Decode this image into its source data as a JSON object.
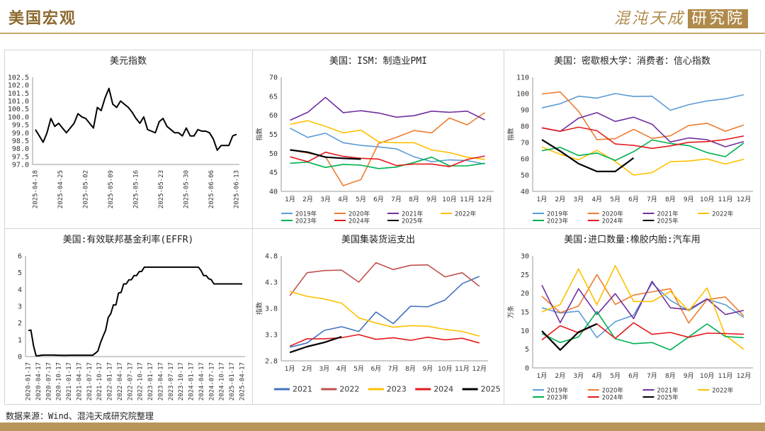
{
  "header": {
    "title": "美国宏观",
    "logo_text": "混沌天成",
    "logo_box": "研究院"
  },
  "footer": {
    "source": "数据来源：Wind、混沌天成研究院整理"
  },
  "months": [
    "1月",
    "2月",
    "3月",
    "4月",
    "5月",
    "6月",
    "7月",
    "8月",
    "9月",
    "10月",
    "11月",
    "12月"
  ],
  "chart_data": [
    {
      "id": "dxy",
      "type": "line",
      "title": "美元指数",
      "ylim": [
        97.0,
        102.5
      ],
      "yticks": [
        "97.0",
        "97.5",
        "98.0",
        "98.5",
        "99.0",
        "99.5",
        "100.0",
        "100.5",
        "101.0",
        "101.5",
        "102.0",
        "102.5"
      ],
      "x_tick_labels": [
        "2025-04-18",
        "2025-04-25",
        "2025-05-02",
        "2025-05-09",
        "2025-05-16",
        "2025-05-23",
        "2025-05-30",
        "2025-06-06",
        "2025-06-13"
      ],
      "series": [
        {
          "color": "#000000",
          "values": [
            99.2,
            98.8,
            98.4,
            99.0,
            99.9,
            99.4,
            99.6,
            99.3,
            99.0,
            99.3,
            99.6,
            100.2,
            100.0,
            99.9,
            99.6,
            99.3,
            100.6,
            100.4,
            101.2,
            101.8,
            100.8,
            100.6,
            101.0,
            100.8,
            100.6,
            100.3,
            99.9,
            99.6,
            100.0,
            99.2,
            99.1,
            99.0,
            99.7,
            99.9,
            99.4,
            99.2,
            99.0,
            99.0,
            98.8,
            99.3,
            98.8,
            98.8,
            99.2,
            99.1,
            99.1,
            99.0,
            98.6,
            97.9,
            98.2,
            98.2,
            98.2,
            98.8,
            98.9
          ]
        }
      ]
    },
    {
      "id": "pmi",
      "type": "line",
      "title": "美国：ISM：制造业PMI",
      "ylabel": "指数",
      "ylim": [
        40,
        70
      ],
      "yticks": [
        "40",
        "45",
        "50",
        "55",
        "60",
        "65",
        "70"
      ],
      "series": [
        {
          "name": "2019年",
          "color": "#5b9bd5",
          "values": [
            56.6,
            54.2,
            55.3,
            52.8,
            52.1,
            51.7,
            51.2,
            49.1,
            47.8,
            48.3,
            48.1,
            47.2
          ]
        },
        {
          "name": "2020年",
          "color": "#ed7d31",
          "values": [
            50.9,
            50.1,
            49.1,
            41.5,
            43.1,
            52.6,
            54.2,
            56.0,
            55.4,
            59.3,
            57.5,
            60.7
          ]
        },
        {
          "name": "2021年",
          "color": "#7030a0",
          "values": [
            58.7,
            60.8,
            64.7,
            60.7,
            61.2,
            60.6,
            59.5,
            59.9,
            61.1,
            60.8,
            61.1,
            58.8
          ]
        },
        {
          "name": "2022年",
          "color": "#ffc000",
          "values": [
            57.6,
            58.6,
            57.1,
            55.4,
            56.1,
            53.0,
            52.8,
            52.8,
            50.9,
            50.2,
            49.0,
            48.4
          ]
        },
        {
          "name": "2023年",
          "color": "#00b050",
          "values": [
            47.4,
            47.7,
            46.3,
            47.1,
            46.9,
            46.0,
            46.4,
            47.6,
            49.0,
            46.7,
            46.7,
            47.4
          ]
        },
        {
          "name": "2024年",
          "color": "#e31a1c",
          "values": [
            49.1,
            47.8,
            50.3,
            49.2,
            48.7,
            48.5,
            46.8,
            47.2,
            47.2,
            46.5,
            48.4,
            49.3
          ]
        },
        {
          "name": "2025年",
          "color": "#000000",
          "values": [
            50.9,
            50.3,
            49.0,
            48.7,
            48.5
          ]
        }
      ]
    },
    {
      "id": "umich",
      "type": "line",
      "title": "美国：密歇根大学：消费者：信心指数",
      "ylabel": "指数",
      "ylim": [
        40,
        110
      ],
      "yticks": [
        "40",
        "50",
        "60",
        "70",
        "80",
        "90",
        "100",
        "110"
      ],
      "series": [
        {
          "name": "2019年",
          "color": "#5b9bd5",
          "values": [
            91.2,
            93.8,
            98.4,
            97.2,
            100.0,
            98.2,
            98.4,
            89.8,
            93.2,
            95.5,
            96.8,
            99.3
          ]
        },
        {
          "name": "2020年",
          "color": "#ed7d31",
          "values": [
            99.8,
            101.0,
            89.1,
            71.8,
            72.3,
            78.1,
            72.5,
            74.1,
            80.4,
            81.8,
            76.9,
            80.7
          ]
        },
        {
          "name": "2021年",
          "color": "#7030a0",
          "values": [
            79.0,
            76.8,
            84.9,
            88.3,
            82.9,
            85.5,
            81.2,
            70.3,
            72.8,
            71.7,
            67.4,
            70.6
          ]
        },
        {
          "name": "2022年",
          "color": "#ffc000",
          "values": [
            67.2,
            62.8,
            59.4,
            65.2,
            58.4,
            50.0,
            51.5,
            58.2,
            58.6,
            59.9,
            56.8,
            59.7
          ]
        },
        {
          "name": "2023年",
          "color": "#00b050",
          "values": [
            64.9,
            67.0,
            62.0,
            63.5,
            59.0,
            64.4,
            71.5,
            69.4,
            68.1,
            63.8,
            61.3,
            69.7
          ]
        },
        {
          "name": "2024年",
          "color": "#e31a1c",
          "values": [
            79.0,
            76.9,
            79.4,
            77.2,
            69.1,
            68.2,
            66.4,
            67.9,
            70.1,
            70.5,
            71.8,
            74.0
          ]
        },
        {
          "name": "2025年",
          "color": "#000000",
          "values": [
            71.7,
            64.7,
            57.0,
            52.2,
            52.2,
            60.5
          ]
        }
      ]
    },
    {
      "id": "effr",
      "type": "line",
      "title": "美国:有效联邦基金利率(EFFR)",
      "ylim": [
        0,
        6
      ],
      "yticks": [
        "0",
        "1",
        "2",
        "3",
        "4",
        "5",
        "6"
      ],
      "x_tick_labels": [
        "2020-01-17",
        "2020-04-17",
        "2020-07-17",
        "2020-10-17",
        "2021-01-17",
        "2021-04-17",
        "2021-07-17",
        "2021-10-17",
        "2022-01-17",
        "2022-04-17",
        "2022-07-17",
        "2022-10-17",
        "2023-01-17",
        "2023-04-17",
        "2023-07-17",
        "2023-10-17",
        "2024-01-17",
        "2024-04-17",
        "2024-07-17",
        "2024-10-17",
        "2025-01-17",
        "2025-04-17"
      ],
      "series": [
        {
          "color": "#000000",
          "values": [
            1.55,
            1.58,
            0.65,
            0.05,
            0.05,
            0.08,
            0.09,
            0.09,
            0.09,
            0.09,
            0.09,
            0.08,
            0.08,
            0.07,
            0.07,
            0.07,
            0.08,
            0.08,
            0.08,
            0.08,
            0.08,
            0.08,
            0.08,
            0.08,
            0.08,
            0.08,
            0.2,
            0.33,
            0.83,
            1.21,
            1.58,
            2.33,
            2.56,
            3.08,
            3.08,
            3.78,
            3.83,
            4.33,
            4.33,
            4.57,
            4.58,
            4.83,
            4.83,
            5.06,
            5.08,
            5.33,
            5.33,
            5.33,
            5.33,
            5.33,
            5.33,
            5.33,
            5.33,
            5.33,
            5.33,
            5.33,
            5.33,
            5.33,
            5.33,
            5.33,
            5.33,
            5.33,
            5.33,
            5.33,
            5.33,
            5.33,
            5.33,
            5.13,
            4.83,
            4.83,
            4.64,
            4.58,
            4.33,
            4.33,
            4.33,
            4.33,
            4.33,
            4.33,
            4.33,
            4.33,
            4.33,
            4.33,
            4.33,
            4.33
          ]
        }
      ]
    },
    {
      "id": "freight",
      "type": "line",
      "title": "美国集装货运支出",
      "ylabel": "指数",
      "ylim": [
        2.8,
        4.8
      ],
      "yticks": [
        "2.8",
        "3.3",
        "3.8",
        "4.3",
        "4.8"
      ],
      "series": [
        {
          "name": "2021",
          "color": "#4472c4",
          "values": [
            3.06,
            3.14,
            3.38,
            3.45,
            3.36,
            3.73,
            3.51,
            3.84,
            3.83,
            3.96,
            4.27,
            4.41
          ]
        },
        {
          "name": "2022",
          "color": "#c0504d",
          "values": [
            4.04,
            4.48,
            4.52,
            4.53,
            4.3,
            4.67,
            4.54,
            4.62,
            4.63,
            4.4,
            4.48,
            4.22
          ]
        },
        {
          "name": "2023",
          "color": "#ffc000",
          "values": [
            4.12,
            4.03,
            3.98,
            3.9,
            3.62,
            3.52,
            3.44,
            3.47,
            3.46,
            3.4,
            3.36,
            3.27
          ]
        },
        {
          "name": "2024",
          "color": "#e31a1c",
          "values": [
            3.08,
            3.22,
            3.22,
            3.24,
            3.3,
            3.21,
            3.24,
            3.19,
            3.25,
            3.2,
            3.23,
            3.14
          ]
        },
        {
          "name": "2025",
          "color": "#000000",
          "values": [
            2.96,
            3.07,
            3.15,
            3.26
          ]
        }
      ]
    },
    {
      "id": "tires",
      "type": "line",
      "title": "美国:进口数量:橡胶内胎:汽车用",
      "ylabel": "万条",
      "ylim": [
        0,
        30
      ],
      "yticks": [
        "0",
        "5",
        "10",
        "15",
        "20",
        "25",
        "30"
      ],
      "series": [
        {
          "name": "2019年",
          "color": "#5b9bd5",
          "values": [
            16.1,
            14.7,
            15.2,
            8.1,
            12.4,
            14.1,
            22.7,
            18.1,
            15.3,
            18.4,
            16.9,
            13.5
          ]
        },
        {
          "name": "2020年",
          "color": "#ed7d31",
          "values": [
            19.2,
            14.8,
            16.6,
            25.0,
            17.0,
            19.5,
            20.4,
            21.2,
            12.0,
            18.3,
            19.0,
            13.9
          ]
        },
        {
          "name": "2021年",
          "color": "#7030a0",
          "values": [
            22.2,
            12.1,
            21.2,
            14.3,
            19.9,
            13.2,
            23.2,
            16.1,
            15.6,
            18.5,
            14.3,
            15.4
          ]
        },
        {
          "name": "2022年",
          "color": "#ffc000",
          "values": [
            15.0,
            17.0,
            26.5,
            16.9,
            27.4,
            17.8,
            17.8,
            20.5,
            15.3,
            21.4,
            8.7,
            5.0
          ]
        },
        {
          "name": "2023年",
          "color": "#00b050",
          "values": [
            9.2,
            6.8,
            8.3,
            15.1,
            7.8,
            6.5,
            6.8,
            4.8,
            8.3,
            11.8,
            8.4,
            8.1
          ]
        },
        {
          "name": "2024年",
          "color": "#e31a1c",
          "values": [
            7.5,
            11.3,
            9.4,
            11.8,
            7.9,
            12.1,
            9.0,
            9.5,
            8.2,
            9.3,
            9.2,
            9.0
          ]
        },
        {
          "name": "2025年",
          "color": "#000000",
          "values": [
            9.9,
            4.8,
            9.6,
            11.8
          ]
        }
      ]
    }
  ]
}
